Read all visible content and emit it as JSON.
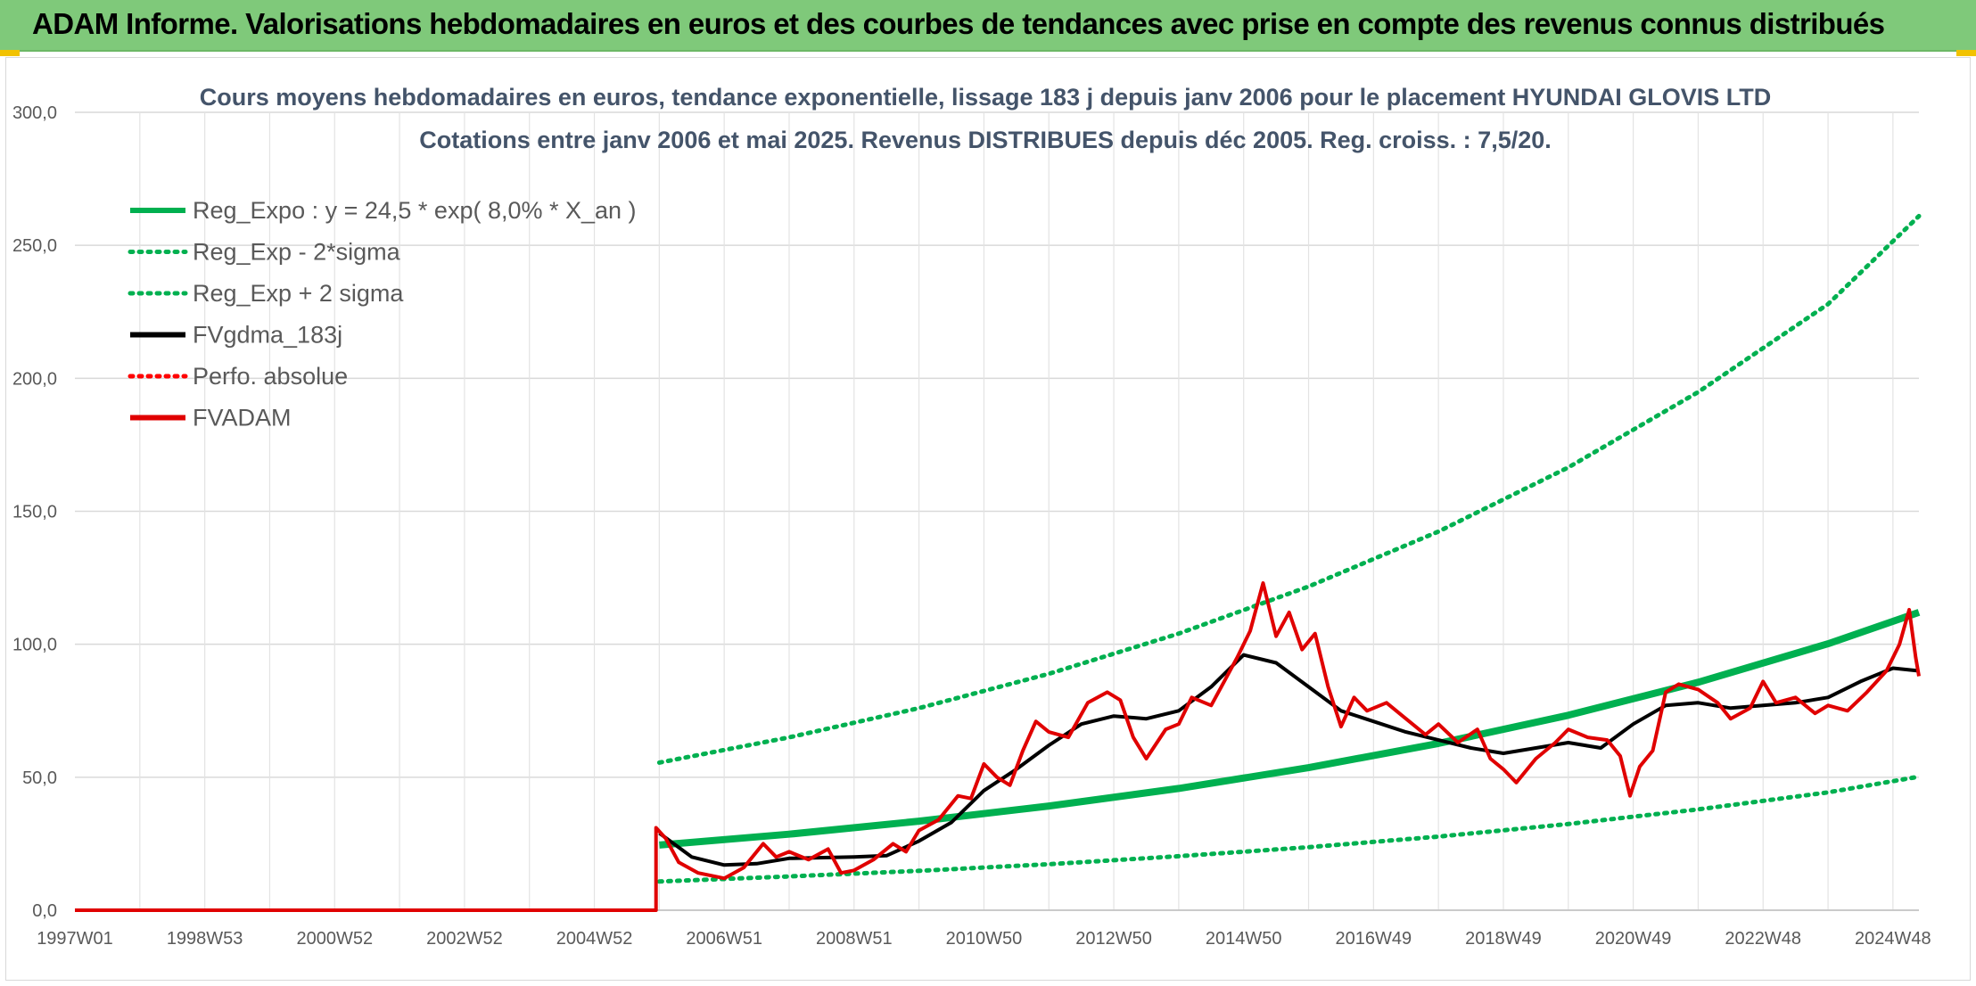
{
  "header": {
    "title": "ADAM Informe. Valorisations hebdomadaires en euros et des courbes de tendances avec prise en compte des revenus connus distribués"
  },
  "chart_data": {
    "type": "line",
    "title_line1": "Cours moyens hebdomadaires en euros, tendance exponentielle, lissage 183 j depuis janv 2006 pour le placement HYUNDAI GLOVIS LTD",
    "title_line2": "Cotations entre janv 2006 et mai 2025. Revenus DISTRIBUES depuis déc 2005. Reg. croiss. : 7,5/20.",
    "x_range": [
      1997.0,
      2025.4
    ],
    "ylim": [
      0,
      300
    ],
    "yticks": [
      0,
      50,
      100,
      150,
      200,
      250,
      300
    ],
    "ytick_labels": [
      "0,0",
      "50,0",
      "100,0",
      "150,0",
      "200,0",
      "250,0",
      "300,0"
    ],
    "xticks": [
      {
        "label": "1997W01",
        "x": 1997.0
      },
      {
        "label": "1998W53",
        "x": 1999.0
      },
      {
        "label": "2000W52",
        "x": 2001.0
      },
      {
        "label": "2002W52",
        "x": 2003.0
      },
      {
        "label": "2004W52",
        "x": 2005.0
      },
      {
        "label": "2006W51",
        "x": 2007.0
      },
      {
        "label": "2008W51",
        "x": 2009.0
      },
      {
        "label": "2010W50",
        "x": 2011.0
      },
      {
        "label": "2012W50",
        "x": 2013.0
      },
      {
        "label": "2014W50",
        "x": 2015.0
      },
      {
        "label": "2016W49",
        "x": 2017.0
      },
      {
        "label": "2018W49",
        "x": 2019.0
      },
      {
        "label": "2020W49",
        "x": 2021.0
      },
      {
        "label": "2022W48",
        "x": 2023.0
      },
      {
        "label": "2024W48",
        "x": 2025.0
      }
    ],
    "grid": true,
    "legend_position": "top-left",
    "series": [
      {
        "name": "Reg_Expo : y = 24,5 * exp( 8,0% *  X_an )",
        "color": "#00b050",
        "style": "solid",
        "points": [
          [
            2006.0,
            24.5
          ],
          [
            2008.0,
            28.6
          ],
          [
            2010.0,
            33.5
          ],
          [
            2012.0,
            39.2
          ],
          [
            2014.0,
            45.8
          ],
          [
            2016.0,
            53.6
          ],
          [
            2018.0,
            62.7
          ],
          [
            2020.0,
            73.3
          ],
          [
            2022.0,
            85.7
          ],
          [
            2024.0,
            100.2
          ],
          [
            2025.4,
            112.0
          ]
        ]
      },
      {
        "name": "Reg_Exp - 2*sigma",
        "color": "#00b050",
        "style": "dotted",
        "points": [
          [
            2006.0,
            10.8
          ],
          [
            2008.0,
            12.7
          ],
          [
            2010.0,
            14.8
          ],
          [
            2012.0,
            17.3
          ],
          [
            2014.0,
            20.3
          ],
          [
            2016.0,
            23.7
          ],
          [
            2018.0,
            27.7
          ],
          [
            2020.0,
            32.4
          ],
          [
            2022.0,
            37.9
          ],
          [
            2024.0,
            44.3
          ],
          [
            2025.4,
            50.2
          ]
        ]
      },
      {
        "name": "Reg_Exp + 2 sigma",
        "color": "#00b050",
        "style": "dotted",
        "points": [
          [
            2006.0,
            55.5
          ],
          [
            2008.0,
            65.0
          ],
          [
            2010.0,
            76.0
          ],
          [
            2012.0,
            88.9
          ],
          [
            2014.0,
            104.0
          ],
          [
            2016.0,
            121.7
          ],
          [
            2018.0,
            142.4
          ],
          [
            2020.0,
            166.5
          ],
          [
            2022.0,
            194.8
          ],
          [
            2024.0,
            227.9
          ],
          [
            2025.4,
            261.0
          ]
        ]
      },
      {
        "name": "FVgdma_183j",
        "color": "#000000",
        "style": "solid",
        "points": [
          [
            2006.0,
            29.0
          ],
          [
            2006.5,
            20.0
          ],
          [
            2007.0,
            17.0
          ],
          [
            2007.5,
            17.5
          ],
          [
            2008.0,
            19.5
          ],
          [
            2009.0,
            20.0
          ],
          [
            2009.5,
            20.5
          ],
          [
            2010.0,
            26.0
          ],
          [
            2010.5,
            33.0
          ],
          [
            2011.0,
            45.0
          ],
          [
            2011.5,
            53.0
          ],
          [
            2012.0,
            62.0
          ],
          [
            2012.5,
            70.0
          ],
          [
            2013.0,
            73.0
          ],
          [
            2013.5,
            72.0
          ],
          [
            2014.0,
            75.0
          ],
          [
            2014.5,
            84.0
          ],
          [
            2015.0,
            96.0
          ],
          [
            2015.5,
            93.0
          ],
          [
            2016.0,
            84.0
          ],
          [
            2016.5,
            75.0
          ],
          [
            2017.0,
            71.0
          ],
          [
            2017.5,
            67.0
          ],
          [
            2018.0,
            64.0
          ],
          [
            2018.5,
            61.0
          ],
          [
            2019.0,
            59.0
          ],
          [
            2019.5,
            61.0
          ],
          [
            2020.0,
            63.0
          ],
          [
            2020.5,
            61.0
          ],
          [
            2021.0,
            70.0
          ],
          [
            2021.5,
            77.0
          ],
          [
            2022.0,
            78.0
          ],
          [
            2022.5,
            76.0
          ],
          [
            2023.0,
            77.0
          ],
          [
            2023.5,
            78.0
          ],
          [
            2024.0,
            80.0
          ],
          [
            2024.5,
            86.0
          ],
          [
            2025.0,
            91.0
          ],
          [
            2025.4,
            90.0
          ]
        ]
      },
      {
        "name": "Perfo. absolue",
        "color": "#ff0000",
        "style": "dotted",
        "points": []
      },
      {
        "name": "FVADAM",
        "color": "#e00000",
        "style": "solid",
        "points": [
          [
            1997.0,
            0.0
          ],
          [
            2005.95,
            0.0
          ],
          [
            2005.95,
            31.0
          ],
          [
            2006.1,
            27.0
          ],
          [
            2006.3,
            18.0
          ],
          [
            2006.6,
            14.0
          ],
          [
            2007.0,
            12.0
          ],
          [
            2007.3,
            16.0
          ],
          [
            2007.6,
            25.0
          ],
          [
            2007.8,
            20.0
          ],
          [
            2008.0,
            22.0
          ],
          [
            2008.3,
            19.0
          ],
          [
            2008.6,
            23.0
          ],
          [
            2008.8,
            14.0
          ],
          [
            2009.0,
            15.0
          ],
          [
            2009.3,
            19.0
          ],
          [
            2009.6,
            25.0
          ],
          [
            2009.8,
            22.0
          ],
          [
            2010.0,
            30.0
          ],
          [
            2010.3,
            34.0
          ],
          [
            2010.6,
            43.0
          ],
          [
            2010.8,
            42.0
          ],
          [
            2011.0,
            55.0
          ],
          [
            2011.2,
            50.0
          ],
          [
            2011.4,
            47.0
          ],
          [
            2011.6,
            60.0
          ],
          [
            2011.8,
            71.0
          ],
          [
            2012.0,
            67.0
          ],
          [
            2012.3,
            65.0
          ],
          [
            2012.6,
            78.0
          ],
          [
            2012.9,
            82.0
          ],
          [
            2013.1,
            79.0
          ],
          [
            2013.3,
            65.0
          ],
          [
            2013.5,
            57.0
          ],
          [
            2013.8,
            68.0
          ],
          [
            2014.0,
            70.0
          ],
          [
            2014.2,
            80.0
          ],
          [
            2014.5,
            77.0
          ],
          [
            2014.7,
            86.0
          ],
          [
            2014.9,
            95.0
          ],
          [
            2015.1,
            105.0
          ],
          [
            2015.3,
            123.0
          ],
          [
            2015.5,
            103.0
          ],
          [
            2015.7,
            112.0
          ],
          [
            2015.9,
            98.0
          ],
          [
            2016.1,
            104.0
          ],
          [
            2016.3,
            84.0
          ],
          [
            2016.5,
            69.0
          ],
          [
            2016.7,
            80.0
          ],
          [
            2016.9,
            75.0
          ],
          [
            2017.2,
            78.0
          ],
          [
            2017.5,
            72.0
          ],
          [
            2017.8,
            66.0
          ],
          [
            2018.0,
            70.0
          ],
          [
            2018.3,
            63.0
          ],
          [
            2018.6,
            68.0
          ],
          [
            2018.8,
            57.0
          ],
          [
            2019.0,
            53.0
          ],
          [
            2019.2,
            48.0
          ],
          [
            2019.5,
            57.0
          ],
          [
            2019.8,
            63.0
          ],
          [
            2020.0,
            68.0
          ],
          [
            2020.3,
            65.0
          ],
          [
            2020.6,
            64.0
          ],
          [
            2020.8,
            58.0
          ],
          [
            2020.95,
            43.0
          ],
          [
            2021.1,
            54.0
          ],
          [
            2021.3,
            60.0
          ],
          [
            2021.5,
            82.0
          ],
          [
            2021.7,
            85.0
          ],
          [
            2022.0,
            83.0
          ],
          [
            2022.3,
            78.0
          ],
          [
            2022.5,
            72.0
          ],
          [
            2022.8,
            76.0
          ],
          [
            2023.0,
            86.0
          ],
          [
            2023.2,
            78.0
          ],
          [
            2023.5,
            80.0
          ],
          [
            2023.8,
            74.0
          ],
          [
            2024.0,
            77.0
          ],
          [
            2024.3,
            75.0
          ],
          [
            2024.6,
            82.0
          ],
          [
            2024.9,
            90.0
          ],
          [
            2025.1,
            100.0
          ],
          [
            2025.25,
            113.0
          ],
          [
            2025.35,
            95.0
          ],
          [
            2025.4,
            88.0
          ]
        ]
      }
    ]
  }
}
